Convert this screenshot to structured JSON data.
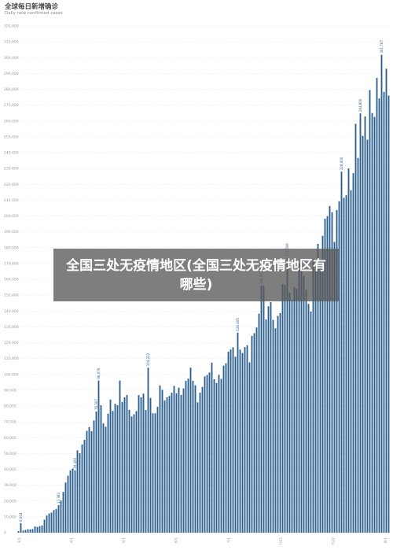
{
  "chart_data": {
    "type": "bar",
    "title": "全球每日新增确诊",
    "subtitle": "Daily new confirmed cases",
    "xlabel": "",
    "ylabel": "",
    "ylim": [
      0,
      320000
    ],
    "grid": true,
    "legend": "none",
    "y_ticks": [
      "0",
      "10,000",
      "20,000",
      "30,000",
      "40,000",
      "50,000",
      "60,000",
      "70,000",
      "80,000",
      "90,000",
      "100,000",
      "110,000",
      "120,000",
      "130,000",
      "140,000",
      "150,000",
      "160,000",
      "170,000",
      "180,000",
      "190,000",
      "200,000",
      "210,000",
      "220,000",
      "230,000",
      "240,000",
      "250,000",
      "260,000",
      "270,000",
      "280,000",
      "290,000",
      "300,000",
      "310,000",
      "320,000"
    ],
    "x_ticks": [
      "3/1",
      "4/1",
      "5/1",
      "6/1",
      "7/1",
      "7/15",
      "7/22",
      "8/1"
    ],
    "series": [
      {
        "values": [
          1000,
          6000,
          1400,
          1700,
          2200,
          2100,
          2300,
          3900,
          3600,
          4100,
          4600,
          8200,
          10800,
          12100,
          12700,
          14300,
          15000,
          17400,
          20300,
          25800,
          31700,
          36000,
          39300,
          40500,
          39400,
          52000,
          50200,
          55700,
          58700,
          64300,
          66700,
          64100,
          70900,
          76500,
          96100,
          80500,
          69000,
          66900,
          75200,
          84100,
          76900,
          81400,
          80500,
          96100,
          82500,
          85500,
          86900,
          77600,
          73400,
          74800,
          76800,
          86900,
          85500,
          87800,
          77500,
          104200,
          85100,
          75400,
          75400,
          79500,
          93000,
          90200,
          83500,
          85500,
          86400,
          88400,
          92700,
          88100,
          91600,
          87000,
          91100,
          95900,
          97300,
          104200,
          95900,
          93100,
          82300,
          88400,
          92100,
          98700,
          99600,
          101200,
          107400,
          96900,
          94500,
          99700,
          97100,
          105500,
          107000,
          114300,
          115700,
          117100,
          111100,
          126400,
          115600,
          113500,
          117200,
          118400,
          107600,
          124300,
          126000,
          129600,
          138300,
          156000,
          156000,
          134700,
          143000,
          145600,
          134400,
          129100,
          136900,
          138700,
          157100,
          156400,
          173500,
          151700,
          147000,
          155200,
          154200,
          170300,
          171600,
          162200,
          153300,
          144500,
          139700,
          172900,
          165300,
          182400,
          172000,
          187500,
          198300,
          199900,
          206300,
          202400,
          183600,
          203800,
          209300,
          228000,
          211500,
          213100,
          230000,
          216300,
          227000,
          258200,
          236700,
          264800,
          250600,
          262900,
          248200,
          279500,
          265000,
          262600,
          287200,
          274200,
          301800,
          278400,
          293000,
          276000
        ]
      }
    ],
    "data_labels": [
      {
        "text": "6,004"
      },
      {
        "text": "17,382"
      },
      {
        "text": "39,493"
      },
      {
        "text": "76,507"
      },
      {
        "text": "104,222"
      },
      {
        "text": "96,076"
      },
      {
        "text": "126,405"
      },
      {
        "text": "156,042"
      },
      {
        "text": "173,509"
      },
      {
        "text": "228,000"
      },
      {
        "text": "264,800"
      },
      {
        "text": "301,767"
      }
    ]
  },
  "overlay": {
    "text": "全国三处无疫情地区(全国三处无疫情地区有哪些)"
  }
}
